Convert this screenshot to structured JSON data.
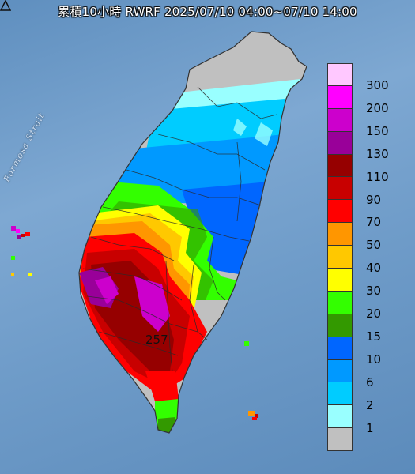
{
  "title": "累積10小時 RWRF 2025/07/10 04:00~07/10 14:00",
  "strait_label": "Formosa Strait",
  "max_label": "257",
  "max_marker_icon": "triangle-marker-icon",
  "legend": [
    {
      "label": "300",
      "color": "#ffc8ff"
    },
    {
      "label": "200",
      "color": "#ff00ff"
    },
    {
      "label": "150",
      "color": "#cc00cc"
    },
    {
      "label": "130",
      "color": "#990099"
    },
    {
      "label": "110",
      "color": "#960000"
    },
    {
      "label": "90",
      "color": "#c80000"
    },
    {
      "label": "70",
      "color": "#ff0000"
    },
    {
      "label": "50",
      "color": "#ff9600"
    },
    {
      "label": "40",
      "color": "#ffc800"
    },
    {
      "label": "30",
      "color": "#ffff00"
    },
    {
      "label": "20",
      "color": "#33ff00"
    },
    {
      "label": "15",
      "color": "#339900"
    },
    {
      "label": "10",
      "color": "#0066ff"
    },
    {
      "label": "6",
      "color": "#0099ff"
    },
    {
      "label": "2",
      "color": "#00ccff"
    },
    {
      "label": "1",
      "color": "#99ffff"
    },
    {
      "label": "",
      "color": "#c0c0c0"
    }
  ]
}
